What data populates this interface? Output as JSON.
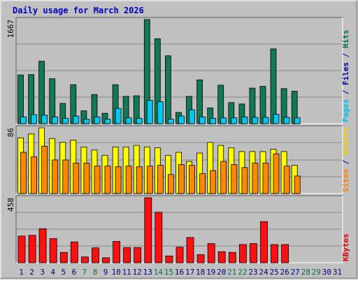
{
  "chart_data": {
    "type": "bar",
    "title": "Daily usage for March 2026",
    "days": [
      "1",
      "2",
      "3",
      "4",
      "5",
      "6",
      "7",
      "8",
      "9",
      "10",
      "11",
      "12",
      "13",
      "14",
      "15",
      "16",
      "17",
      "18",
      "19",
      "20",
      "21",
      "22",
      "23",
      "24",
      "25",
      "26",
      "27",
      "28",
      "29",
      "30",
      "31"
    ],
    "weekend_days": [
      "7",
      "8",
      "14",
      "15",
      "21",
      "22",
      "28",
      "29"
    ],
    "panels": [
      {
        "id": "hits",
        "ymax_label": "1667",
        "ymax": 1667,
        "right_labels": [
          {
            "text": "Pages",
            "color": "#00c0e0"
          },
          {
            "text": " / ",
            "color": "#0000a0"
          },
          {
            "text": "Files",
            "color": "#0000a0"
          },
          {
            "text": " / ",
            "color": "#0000a0"
          },
          {
            "text": "Hits",
            "color": "#007050"
          }
        ],
        "series": [
          {
            "name": "Hits",
            "color": "#127856",
            "values": [
              780,
              786,
              1000,
              720,
              326,
              624,
              206,
              468,
              167,
              624,
              438,
              446,
              1667,
              1360,
              1087,
              180,
              438,
              702,
              253,
              616,
              338,
              316,
              570,
              598,
              1198,
              562,
              520,
              null,
              null,
              null,
              null
            ]
          },
          {
            "name": "Pages",
            "color": "#00c8f0",
            "values": [
              108,
              144,
              137,
              108,
              86,
              122,
              72,
              108,
              72,
              245,
              94,
              86,
              375,
              353,
              72,
              122,
              223,
              108,
              86,
              94,
              94,
              108,
              101,
              101,
              151,
              101,
              94,
              null,
              null,
              null,
              null
            ]
          }
        ]
      },
      {
        "id": "visits",
        "ymax_label": "86",
        "ymax": 86,
        "right_labels": [
          {
            "text": "Sites",
            "color": "#ff8000"
          },
          {
            "text": " / ",
            "color": "#0000a0"
          },
          {
            "text": "Visits",
            "color": "#ffd000"
          }
        ],
        "series": [
          {
            "name": "Visits",
            "color": "#ffff00",
            "values": [
              73,
              78,
              86,
              72,
              67,
              70,
              61,
              57,
              50,
              61,
              61,
              63,
              61,
              60,
              50,
              54,
              42,
              53,
              67,
              63,
              60,
              55,
              55,
              55,
              58,
              55,
              37,
              null,
              null,
              null,
              null
            ]
          },
          {
            "name": "Sites",
            "color": "#ff8800",
            "values": [
              54,
              48,
              62,
              44,
              44,
              40,
              40,
              36,
              36,
              35,
              36,
              35,
              36,
              37,
              25,
              38,
              37,
              26,
              30,
              42,
              38,
              34,
              40,
              40,
              52,
              36,
              23,
              null,
              null,
              null,
              null
            ]
          }
        ]
      },
      {
        "id": "kbytes",
        "ymax_label": "458",
        "ymax": 458,
        "right_labels": [
          {
            "text": "KBytes",
            "color": "#e00000"
          }
        ],
        "series": [
          {
            "name": "KBytes",
            "color": "#ff1010",
            "values": [
              188,
              193,
              240,
              170,
              73,
              147,
              41,
              105,
              35,
              150,
              107,
              107,
              458,
              356,
              48,
              110,
              178,
              57,
              135,
              78,
              73,
              128,
              135,
              290,
              128,
              128,
              null,
              null,
              null,
              null,
              null
            ]
          }
        ]
      }
    ]
  },
  "colors": {
    "frame": "#c0c0c0",
    "plot_bg": "#c0c0c0",
    "title": "#0000c0",
    "weekday_label": "#000080",
    "weekend_label": "#007050",
    "grid": "#888888",
    "bar_outline": "#000000"
  }
}
